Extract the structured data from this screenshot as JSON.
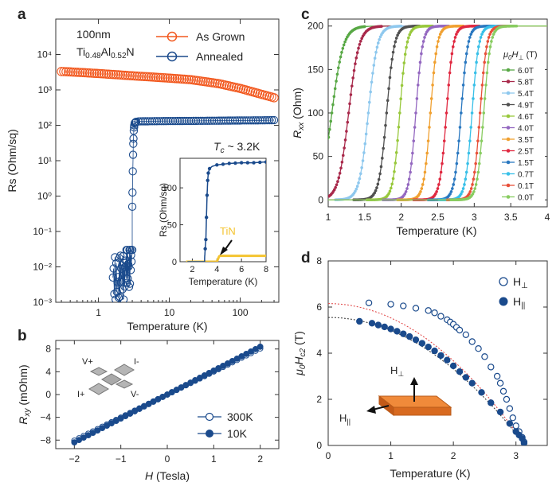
{
  "colors": {
    "as_grown": "#f2581e",
    "annealed": "#1a4a8c",
    "tin": "#f4c430",
    "fit_red": "#e04040",
    "fit_black": "#333333",
    "slab": "#e8782a"
  },
  "chart_data": [
    {
      "panel": "a",
      "type": "scatter",
      "xscale": "log",
      "yscale": "log",
      "xlim": [
        0.25,
        350
      ],
      "ylim": [
        0.001,
        100000
      ],
      "xticks": [
        1,
        10,
        100
      ],
      "xtick_labels": [
        "1",
        "10",
        "100"
      ],
      "yticks": [
        0.001,
        0.01,
        0.1,
        1,
        10,
        100,
        1000,
        10000
      ],
      "ytick_labels": [
        "10⁻³",
        "10⁻²",
        "10⁻¹",
        "10⁰",
        "10¹",
        "10²",
        "10³",
        "10⁴"
      ],
      "xlabel": "Temperature (K)",
      "ylabel": "Rs (Ohm/sq)",
      "sample_label": "100nm",
      "formula": {
        "ti": "Ti",
        "ti_sub": "0.48",
        "al": "Al",
        "al_sub": "0.52",
        "n": "N"
      },
      "series": [
        {
          "name": "As Grown",
          "color": "#f2581e",
          "x": [
            0.32,
            0.5,
            1,
            2,
            3,
            5,
            10,
            20,
            50,
            100,
            200,
            300
          ],
          "y": [
            3300,
            3150,
            2900,
            2650,
            2500,
            2350,
            2150,
            1950,
            1500,
            1100,
            750,
            600
          ]
        },
        {
          "name": "Annealed",
          "color": "#1a4a8c",
          "x": [
            1.7,
            1.9,
            2.1,
            2.3,
            2.5,
            2.7,
            2.85,
            2.95,
            3.0,
            3.05,
            3.1,
            3.15,
            3.2,
            3.25,
            3.3,
            3.4,
            3.6,
            4,
            5,
            7,
            10,
            20,
            50,
            100,
            200,
            300
          ],
          "y": [
            0.005,
            0.003,
            0.008,
            0.004,
            0.015,
            0.006,
            0.02,
            0.008,
            0.5,
            5,
            30,
            70,
            100,
            115,
            120,
            125,
            128,
            130,
            130,
            131,
            132,
            133,
            135,
            137,
            138,
            140
          ]
        }
      ],
      "inset": {
        "type": "line",
        "title_T": "T",
        "title_sub": "c",
        "title_rest": " ~ 3.2K",
        "xlabel": "Temperature (K)",
        "ylabel": "Rs (Ohm/sq)",
        "xlim": [
          1,
          8
        ],
        "ylim": [
          0,
          140
        ],
        "xticks": [
          2,
          4,
          6,
          8
        ],
        "yticks": [
          0,
          50,
          100
        ],
        "annotation": "TiN",
        "series": [
          {
            "name": "Annealed",
            "color": "#1a4a8c",
            "x": [
              1.6,
              2.0,
              2.5,
              2.9,
              3.0,
              3.1,
              3.15,
              3.2,
              3.25,
              3.3,
              3.4,
              3.6,
              4.0,
              4.5,
              5,
              6,
              7,
              8
            ],
            "y": [
              0,
              0,
              0,
              0,
              5,
              30,
              60,
              90,
              110,
              120,
              126,
              129,
              131,
              132,
              133,
              134,
              134,
              135
            ]
          },
          {
            "name": "TiN",
            "color": "#f4c430",
            "x": [
              1.5,
              3.5,
              4.0,
              4.2,
              4.5,
              5,
              6,
              7,
              8
            ],
            "y": [
              0,
              0,
              0,
              8,
              8,
              8,
              8,
              8,
              8
            ]
          }
        ]
      }
    },
    {
      "panel": "b",
      "type": "scatter",
      "xlim": [
        -2.4,
        2.4
      ],
      "ylim": [
        -9.5,
        9.5
      ],
      "xticks": [
        -2,
        -1,
        0,
        1,
        2
      ],
      "yticks": [
        -8,
        -4,
        0,
        4,
        8
      ],
      "xlabel_main": "H",
      "xlabel_unit": " (Tesla)",
      "ylabel_main": "R",
      "ylabel_sub": "xy",
      "ylabel_unit": " (mOhm)",
      "slope": 4.15,
      "device_labels": [
        "V+",
        "I-",
        "I+",
        "V-"
      ],
      "series": [
        {
          "name": "300K",
          "color": "#1a4a8c",
          "filled": false,
          "slope": 4.05
        },
        {
          "name": "10K",
          "color": "#1a4a8c",
          "filled": true,
          "slope": 4.2
        }
      ]
    },
    {
      "panel": "c",
      "type": "line",
      "xlim": [
        1,
        4
      ],
      "ylim": [
        -8,
        208
      ],
      "xticks": [
        1,
        1.5,
        2,
        2.5,
        3,
        3.5,
        4
      ],
      "xtick_labels": [
        "1",
        "1.5",
        "2",
        "2.5",
        "3",
        "3.5",
        "4"
      ],
      "yticks": [
        0,
        50,
        100,
        150,
        200
      ],
      "xlabel": "Temperature (K)",
      "ylabel_main": "R",
      "ylabel_sub": "xx",
      "ylabel_unit": " (Ohm)",
      "legend_title": {
        "mu": "μ",
        "sub0": "0",
        "H": "H",
        "perp": "⊥",
        "unit": " (T)"
      },
      "series": [
        {
          "name": "6.0T",
          "Tc": 1.05,
          "color": "#58a845"
        },
        {
          "name": "5.8T",
          "Tc": 1.28,
          "color": "#a8284a"
        },
        {
          "name": "5.4T",
          "Tc": 1.55,
          "color": "#8ec8ee"
        },
        {
          "name": "4.9T",
          "Tc": 1.8,
          "color": "#505050"
        },
        {
          "name": "4.6T",
          "Tc": 1.98,
          "color": "#98c83c"
        },
        {
          "name": "4.0T",
          "Tc": 2.2,
          "color": "#9468c0"
        },
        {
          "name": "3.5T",
          "Tc": 2.4,
          "color": "#f0a030"
        },
        {
          "name": "2.5T",
          "Tc": 2.62,
          "color": "#e02840"
        },
        {
          "name": "1.5T",
          "Tc": 2.82,
          "color": "#2a78c0"
        },
        {
          "name": "0.7T",
          "Tc": 2.97,
          "color": "#38c0e8"
        },
        {
          "name": "0.1T",
          "Tc": 3.08,
          "color": "#e8503a"
        },
        {
          "name": "0.0T",
          "Tc": 3.13,
          "color": "#88cc60"
        }
      ]
    },
    {
      "panel": "d",
      "type": "scatter",
      "xlim": [
        0,
        3.5
      ],
      "ylim": [
        0,
        8
      ],
      "xticks": [
        0,
        1,
        2,
        3
      ],
      "yticks": [
        0,
        2,
        4,
        6,
        8
      ],
      "xlabel": "Temperature (K)",
      "ylabel": {
        "mu": "μ",
        "sub0": "0",
        "H": "H",
        "subc2": "c2",
        "unit": " (T)"
      },
      "legend": [
        {
          "label_main": "H",
          "label_sub": "⊥",
          "filled": false
        },
        {
          "label_main": "H",
          "label_sub": "||",
          "filled": true
        }
      ],
      "series": [
        {
          "name": "H⊥",
          "filled": false,
          "color": "#1a4a8c",
          "fit_color": "#e04040",
          "Hc0": 6.15,
          "Tc": 3.15,
          "x": [
            0.65,
            1.0,
            1.2,
            1.4,
            1.6,
            1.7,
            1.8,
            1.9,
            1.95,
            2.0,
            2.05,
            2.1,
            2.2,
            2.3,
            2.4,
            2.5,
            2.6,
            2.7,
            2.75,
            2.8,
            2.85,
            2.9,
            2.95,
            3.0,
            3.05,
            3.1,
            3.13
          ],
          "y": [
            6.18,
            6.12,
            6.05,
            5.95,
            5.85,
            5.75,
            5.6,
            5.45,
            5.35,
            5.25,
            5.12,
            5.0,
            4.8,
            4.5,
            4.2,
            3.85,
            3.4,
            3.0,
            2.7,
            2.35,
            2.0,
            1.6,
            1.2,
            0.85,
            0.6,
            0.35,
            0.15
          ]
        },
        {
          "name": "H||",
          "filled": true,
          "color": "#1a4a8c",
          "fit_color": "#333333",
          "Hc0": 5.55,
          "Tc": 3.15,
          "x": [
            0.5,
            0.7,
            0.8,
            0.9,
            1.0,
            1.1,
            1.2,
            1.3,
            1.4,
            1.5,
            1.6,
            1.7,
            1.8,
            1.9,
            2.0,
            2.1,
            2.2,
            2.3,
            2.45,
            2.6,
            2.75,
            2.9,
            3.0,
            3.05,
            3.1,
            3.13
          ],
          "y": [
            5.38,
            5.3,
            5.22,
            5.14,
            5.05,
            4.95,
            4.84,
            4.72,
            4.58,
            4.43,
            4.27,
            4.1,
            3.9,
            3.7,
            3.45,
            3.2,
            2.95,
            2.7,
            2.3,
            1.85,
            1.45,
            0.95,
            0.6,
            0.45,
            0.3,
            0.1
          ]
        }
      ],
      "inset_labels": {
        "perp_main": "H",
        "perp_sub": "⊥",
        "par_main": "H",
        "par_sub": "||"
      }
    }
  ]
}
